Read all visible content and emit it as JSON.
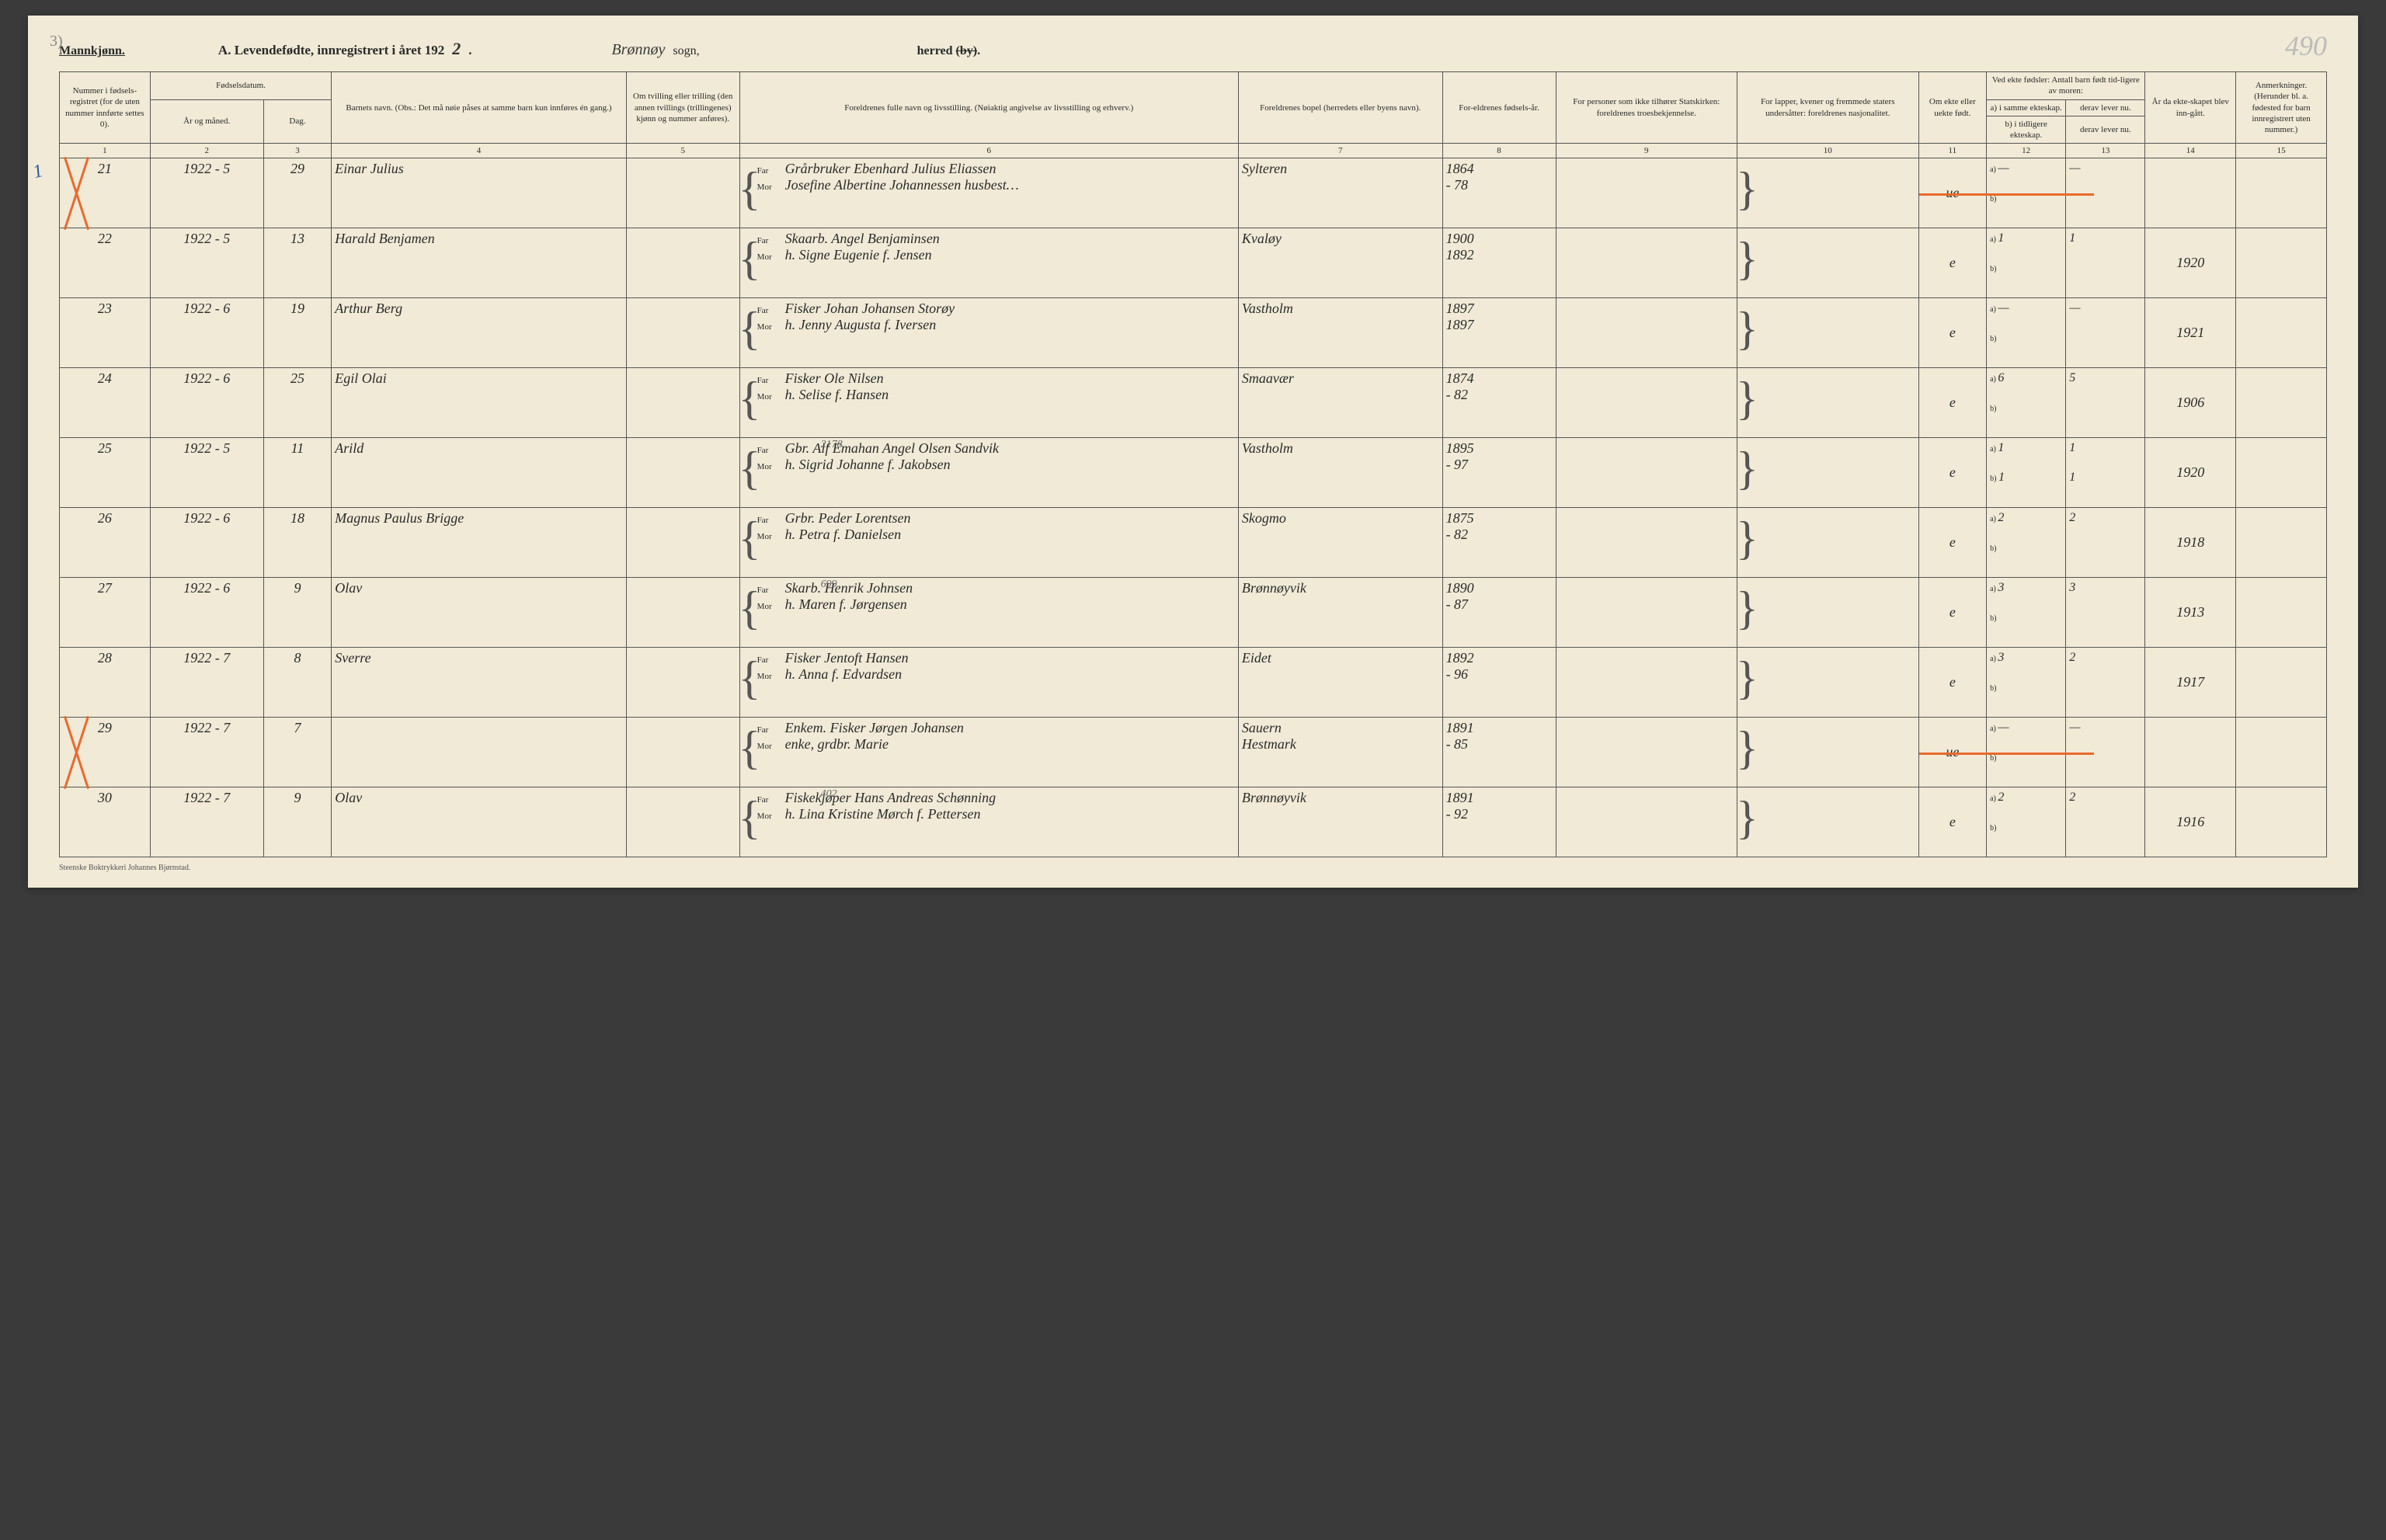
{
  "page": {
    "pencil_top_left": "3)",
    "pencil_top_right": "490",
    "mannkjonn": "Mannkjønn.",
    "title_prefix": "A. Levendefødte, innregistrert i året 192",
    "title_hand_year": "2",
    "title_suffix": ".",
    "sogn_hand": "Brønnøy",
    "sogn_label": "sogn,",
    "herred_label": "herred (by).",
    "footer": "Steenske Boktrykkeri Johannes Bjørnstad."
  },
  "headers": {
    "c1": "Nummer i fødsels-registret (for de uten nummer innførte settes 0).",
    "c2_top": "Fødselsdatum.",
    "c2a": "År og måned.",
    "c2b": "Dag.",
    "c4": "Barnets navn.\n(Obs.: Det må nøie påses at samme barn kun innføres én gang.)",
    "c5": "Om tvilling eller trilling (den annen tvillings (trillingenes) kjønn og nummer anføres).",
    "c6": "Foreldrenes fulle navn og livsstilling.\n(Nøiaktig angivelse av livsstilling og erhverv.)",
    "c7": "Foreldrenes bopel (herredets eller byens navn).",
    "c8": "For-eldrenes fødsels-år.",
    "c9": "For personer som ikke tilhører Statskirken: foreldrenes troesbekjennelse.",
    "c10": "For lapper, kvener og fremmede staters undersåtter: foreldrenes nasjonalitet.",
    "c11": "Om ekte eller uekte født.",
    "c12_top": "Ved ekte fødsler: Antall barn født tid-ligere av moren:",
    "c12a": "a) i samme ekteskap.",
    "c12a_sub": "derav lever nu.",
    "c12b": "b) i tidligere ekteskap.",
    "c12b_sub": "derav lever nu.",
    "c14": "År da ekte-skapet blev inn-gått.",
    "c15": "Anmerkninger.\n(Herunder bl. a. fødested for barn innregistrert uten nummer.)",
    "far": "Far",
    "mor": "Mor"
  },
  "colnums": [
    "1",
    "2",
    "3",
    "4",
    "5",
    "6",
    "7",
    "8",
    "9",
    "10",
    "11",
    "12",
    "13",
    "14",
    "15"
  ],
  "rows": [
    {
      "num": "21",
      "yr": "1922 - 5",
      "day": "29",
      "name": "Einar Julius",
      "far": "Grårbruker Ebenhard Julius Eliassen",
      "mor": "Josefine Albertine Johannessen husbest…",
      "bopel": "Sylteren",
      "far_aar": "1864",
      "mor_aar": "- 78",
      "ekte": "ue",
      "a_same": "—",
      "a_now": "—",
      "b_prev": "",
      "b_now": "",
      "ekt_aar": "",
      "red_cross": true,
      "blue_mark": "1",
      "orange_row11": true,
      "sup_note": ""
    },
    {
      "num": "22",
      "yr": "1922 - 5",
      "day": "13",
      "name": "Harald Benjamen",
      "far": "Skaarb. Angel Benjaminsen",
      "mor": "h. Signe Eugenie f. Jensen",
      "bopel": "Kvaløy",
      "far_aar": "1900",
      "mor_aar": "1892",
      "ekte": "e",
      "a_same": "1",
      "a_now": "1",
      "b_prev": "",
      "b_now": "",
      "ekt_aar": "1920",
      "sup_note": ""
    },
    {
      "num": "23",
      "yr": "1922 - 6",
      "day": "19",
      "name": "Arthur Berg",
      "far": "Fisker Johan Johansen Storøy",
      "mor": "h. Jenny Augusta f. Iversen",
      "bopel": "Vastholm",
      "far_aar": "1897",
      "mor_aar": "1897",
      "ekte": "e",
      "a_same": "—",
      "a_now": "—",
      "b_prev": "",
      "b_now": "",
      "ekt_aar": "1921",
      "sup_note": ""
    },
    {
      "num": "24",
      "yr": "1922 - 6",
      "day": "25",
      "name": "Egil Olai",
      "far": "Fisker Ole Nilsen",
      "mor": "h. Selise f. Hansen",
      "bopel": "Smaavær",
      "far_aar": "1874",
      "mor_aar": "- 82",
      "ekte": "e",
      "a_same": "6",
      "a_now": "5",
      "b_prev": "",
      "b_now": "",
      "ekt_aar": "1906",
      "sup_note": ""
    },
    {
      "num": "25",
      "yr": "1922 - 5",
      "day": "11",
      "name": "Arild",
      "far": "Gbr. Alf Emahan Angel Olsen Sandvik",
      "mor": "h. Sigrid Johanne f. Jakobsen",
      "bopel": "Vastholm",
      "far_aar": "1895",
      "mor_aar": "- 97",
      "ekte": "e",
      "a_same": "1",
      "a_now": "1",
      "b_prev": "1",
      "b_now": "1",
      "ekt_aar": "1920",
      "sup_note": "2178"
    },
    {
      "num": "26",
      "yr": "1922 - 6",
      "day": "18",
      "name": "Magnus Paulus Brigge",
      "far": "Grbr. Peder Lorentsen",
      "mor": "h. Petra f. Danielsen",
      "bopel": "Skogmo",
      "far_aar": "1875",
      "mor_aar": "- 82",
      "ekte": "e",
      "a_same": "2",
      "a_now": "2",
      "b_prev": "",
      "b_now": "",
      "ekt_aar": "1918",
      "sup_note": ""
    },
    {
      "num": "27",
      "yr": "1922 - 6",
      "day": "9",
      "name": "Olav",
      "far": "Skarb. Henrik Johnsen",
      "mor": "h. Maren f. Jørgensen",
      "bopel": "Brønnøyvik",
      "far_aar": "1890",
      "mor_aar": "- 87",
      "ekte": "e",
      "a_same": "3",
      "a_now": "3",
      "b_prev": "",
      "b_now": "",
      "ekt_aar": "1913",
      "sup_note": "699"
    },
    {
      "num": "28",
      "yr": "1922 - 7",
      "day": "8",
      "name": "Sverre",
      "far": "Fisker Jentoft Hansen",
      "mor": "h. Anna f. Edvardsen",
      "bopel": "Eidet",
      "far_aar": "1892",
      "mor_aar": "- 96",
      "ekte": "e",
      "a_same": "3",
      "a_now": "2",
      "b_prev": "",
      "b_now": "",
      "ekt_aar": "1917",
      "sup_note": ""
    },
    {
      "num": "29",
      "yr": "1922 - 7",
      "day": "7",
      "name": "",
      "far": "Enkem. Fisker Jørgen Johansen",
      "mor": "enke, grdbr. Marie",
      "bopel": "Sauern",
      "bopel2": "Hestmark",
      "far_aar": "1891",
      "mor_aar": "- 85",
      "ekte": "ue",
      "a_same": "—",
      "a_now": "—",
      "b_prev": "",
      "b_now": "",
      "ekt_aar": "",
      "red_cross": true,
      "orange_row11": true,
      "sup_note": ""
    },
    {
      "num": "30",
      "yr": "1922 - 7",
      "day": "9",
      "name": "Olav",
      "far": "Fiskekjøper Hans Andreas Schønning",
      "mor": "h. Lina Kristine Mørch f. Pettersen",
      "bopel": "Brønnøyvik",
      "far_aar": "1891",
      "mor_aar": "- 92",
      "ekte": "e",
      "a_same": "2",
      "a_now": "2",
      "b_prev": "",
      "b_now": "",
      "ekt_aar": "1916",
      "sup_note": "402"
    }
  ],
  "styles": {
    "paper_bg": "#f0ead6",
    "ink": "#2a2a2a",
    "rule": "#555555",
    "red_pencil": "#e96a2e",
    "blue_pencil": "#2a5b99",
    "faint_pencil": "#bbbbbb"
  }
}
